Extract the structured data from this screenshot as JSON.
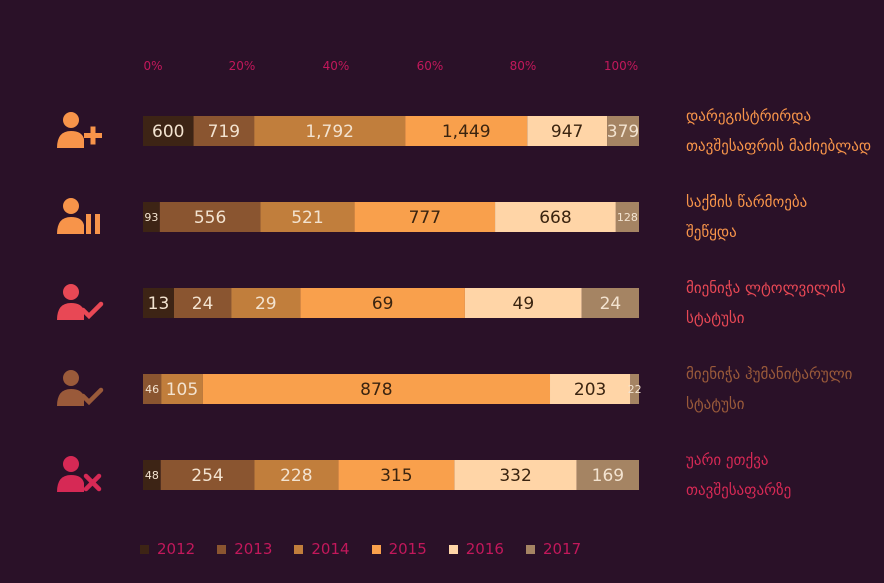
{
  "chart_data": {
    "type": "bar",
    "orientation": "horizontal",
    "stacked": true,
    "normalized": true,
    "x_ticks": [
      "0%",
      "20%",
      "40%",
      "60%",
      "80%",
      "100%"
    ],
    "xlim": [
      0,
      100
    ],
    "legend_position": "bottom",
    "grid": false,
    "categories": [
      "დარეგისტრირდა\nთავშესაფრის მაძიებლად",
      "საქმის წარმოება\nშეწყდა",
      "მიენიჭა ლტოლვილის\nსტატუსი",
      "მიენიჭა ჰუმანიტარული\nსტატუსი",
      "უარი ეთქვა\nთავშესაფარზე"
    ],
    "category_colors": [
      "#f7944a",
      "#f7944a",
      "#e84855",
      "#9a5a3a",
      "#d62955"
    ],
    "series": [
      {
        "name": "2012",
        "color": "#3d2415",
        "values": [
          600,
          93,
          13,
          0,
          48
        ]
      },
      {
        "name": "2013",
        "color": "#8a5530",
        "values": [
          719,
          556,
          24,
          46,
          254
        ]
      },
      {
        "name": "2014",
        "color": "#c17e3c",
        "values": [
          1792,
          521,
          29,
          105,
          228
        ]
      },
      {
        "name": "2015",
        "color": "#f9a04c",
        "values": [
          1449,
          777,
          69,
          878,
          315
        ]
      },
      {
        "name": "2016",
        "color": "#ffd5a7",
        "values": [
          947,
          668,
          49,
          203,
          332
        ]
      },
      {
        "name": "2017",
        "color": "#a58463",
        "values": [
          379,
          128,
          24,
          22,
          169
        ]
      }
    ],
    "data_labels": [
      [
        "600",
        "719",
        "1,792",
        "1,449",
        "947",
        "379"
      ],
      [
        "93",
        "556",
        "521",
        "777",
        "668",
        "128"
      ],
      [
        "13",
        "24",
        "29",
        "69",
        "49",
        "24"
      ],
      [
        "0",
        "46",
        "105",
        "878",
        "203",
        "22"
      ],
      [
        "48",
        "254",
        "228",
        "315",
        "332",
        "169"
      ]
    ]
  },
  "icons": [
    "user-add-icon",
    "user-pause-icon",
    "user-check-icon",
    "user-check-icon",
    "user-reject-icon"
  ]
}
